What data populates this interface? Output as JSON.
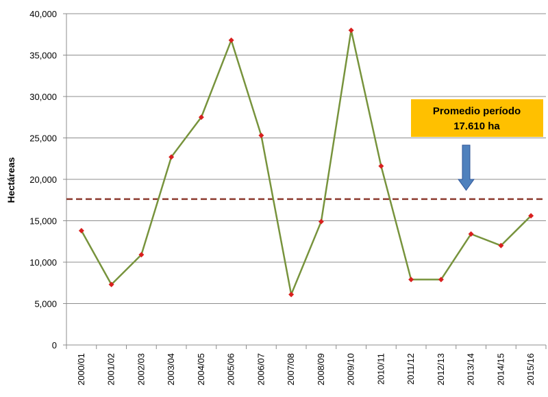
{
  "chart_data": {
    "type": "line",
    "ylabel": "Hectáreas",
    "xlabel": "",
    "ylim": [
      0,
      40000
    ],
    "yticks": [
      0,
      5000,
      10000,
      15000,
      20000,
      25000,
      30000,
      35000,
      40000
    ],
    "ytick_labels": [
      "0",
      "5,000",
      "10,000",
      "15,000",
      "20,000",
      "25,000",
      "30,000",
      "35,000",
      "40,000"
    ],
    "grid": "horizontal",
    "categories": [
      "2000/01",
      "2001/02",
      "2002/03",
      "2003/04",
      "2004/05",
      "2005/06",
      "2006/07",
      "2007/08",
      "2008/09",
      "2009/10",
      "2010/11",
      "2011/12",
      "2012/13",
      "2013/14",
      "2014/15",
      "2015/16"
    ],
    "series": [
      {
        "values": [
          13800,
          7300,
          10900,
          22700,
          27500,
          36800,
          25300,
          6100,
          14900,
          38000,
          21600,
          7900,
          7900,
          13400,
          12000,
          15600
        ],
        "line_color": "#77933c",
        "marker_color": "#d9201f"
      }
    ],
    "reference_line": {
      "value": 17610,
      "color": "#8b3a2e",
      "style": "dashed"
    },
    "annotation": {
      "lines": [
        "Promedio período",
        "17.610 ha"
      ],
      "box_color": "#ffc000",
      "arrow_color": "#4f81bd"
    }
  }
}
